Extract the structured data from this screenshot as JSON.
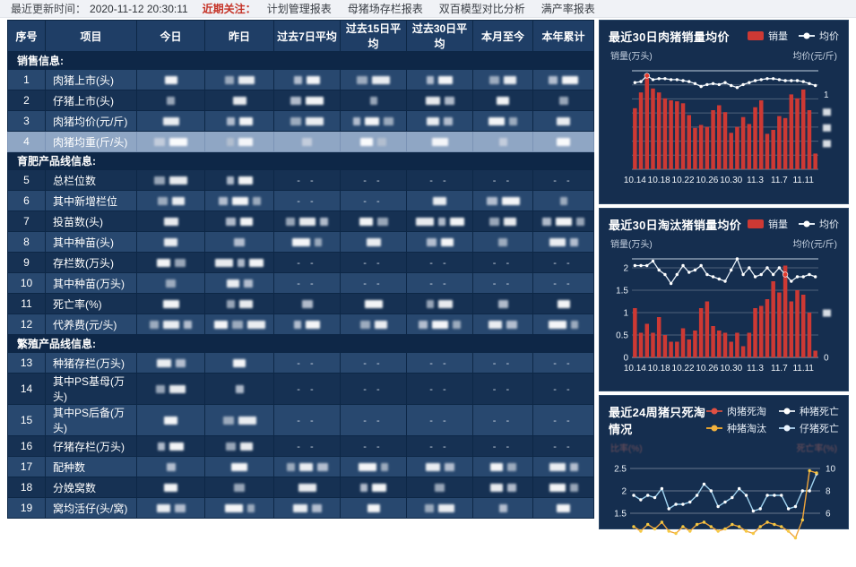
{
  "topbar": {
    "update_label": "最近更新时间：",
    "update_time": "2020-11-12 20:30:11",
    "focus_label": "近期关注：",
    "links": [
      "计划管理报表",
      "母猪场存栏报表",
      "双百模型对比分析",
      "满产率报表"
    ]
  },
  "table": {
    "dash_text": "- -",
    "headers": [
      "序号",
      "项目",
      "今日",
      "昨日",
      "过去7日平均",
      "过去15日平均",
      "过去30日平均",
      "本月至今",
      "本年累计"
    ],
    "rows": [
      {
        "type": "section",
        "label": "销售信息:"
      },
      {
        "type": "data",
        "no": "1",
        "label": "肉猪上市(头)",
        "shade": "medium",
        "cells": [
          "b",
          "bb",
          "bb",
          "bb",
          "bb",
          "bb",
          "bb"
        ]
      },
      {
        "type": "data",
        "no": "2",
        "label": "仔猪上市(头)",
        "shade": "dark",
        "cells": [
          "b",
          "b",
          "bb",
          "b",
          "bb",
          "b",
          "b"
        ]
      },
      {
        "type": "data",
        "no": "3",
        "label": "肉猪均价(元/斤)",
        "shade": "medium",
        "cells": [
          "b",
          "bb",
          "bb",
          "bbb",
          "bb",
          "bb",
          "b"
        ]
      },
      {
        "type": "data",
        "no": "4",
        "label": "肉猪均重(斤/头)",
        "shade": "selected",
        "cells": [
          "bb",
          "bb",
          "b",
          "bb",
          "b",
          "b",
          "b"
        ]
      },
      {
        "type": "section",
        "label": "育肥产品线信息:"
      },
      {
        "type": "data",
        "no": "5",
        "label": "总栏位数",
        "shade": "dark",
        "cells": [
          "bb",
          "bb",
          "d",
          "d",
          "d",
          "d",
          "d"
        ]
      },
      {
        "type": "data",
        "no": "6",
        "label": "其中新增栏位",
        "shade": "medium",
        "cells": [
          "bb",
          "bbb",
          "d",
          "d",
          "b",
          "bb",
          "b"
        ]
      },
      {
        "type": "data",
        "no": "7",
        "label": "投苗数(头)",
        "shade": "dark",
        "cells": [
          "b",
          "bb",
          "bbb",
          "bb",
          "bbb",
          "bb",
          "bbb"
        ]
      },
      {
        "type": "data",
        "no": "8",
        "label": "其中种苗(头)",
        "shade": "medium",
        "cells": [
          "b",
          "b",
          "bb",
          "b",
          "bb",
          "b",
          "bb"
        ]
      },
      {
        "type": "data",
        "no": "9",
        "label": "存栏数(万头)",
        "shade": "dark",
        "cells": [
          "bb",
          "bbb",
          "d",
          "d",
          "d",
          "d",
          "d"
        ]
      },
      {
        "type": "data",
        "no": "10",
        "label": "其中种苗(万头)",
        "shade": "medium",
        "cells": [
          "b",
          "bb",
          "d",
          "d",
          "d",
          "d",
          "d"
        ]
      },
      {
        "type": "data",
        "no": "11",
        "label": "死亡率(%)",
        "shade": "dark",
        "cells": [
          "b",
          "bb",
          "b",
          "b",
          "bb",
          "b",
          "b"
        ]
      },
      {
        "type": "data",
        "no": "12",
        "label": "代养费(元/头)",
        "shade": "medium",
        "cells": [
          "bbb",
          "bbb",
          "bb",
          "bb",
          "bbb",
          "bb",
          "bb"
        ]
      },
      {
        "type": "section",
        "label": "繁殖产品线信息:"
      },
      {
        "type": "data",
        "no": "13",
        "label": "种猪存栏(万头)",
        "shade": "medium",
        "cells": [
          "bb",
          "b",
          "d",
          "d",
          "d",
          "d",
          "d"
        ]
      },
      {
        "type": "data",
        "no": "14",
        "label": "其中PS基母(万头)",
        "shade": "dark",
        "cells": [
          "bb",
          "b",
          "d",
          "d",
          "d",
          "d",
          "d"
        ]
      },
      {
        "type": "data",
        "no": "15",
        "label": "其中PS后备(万头)",
        "shade": "medium",
        "cells": [
          "b",
          "bb",
          "d",
          "d",
          "d",
          "d",
          "d"
        ]
      },
      {
        "type": "data",
        "no": "16",
        "label": "仔猪存栏(万头)",
        "shade": "dark",
        "cells": [
          "bb",
          "bb",
          "d",
          "d",
          "d",
          "d",
          "d"
        ]
      },
      {
        "type": "data",
        "no": "17",
        "label": "配种数",
        "shade": "medium",
        "cells": [
          "b",
          "b",
          "bbb",
          "bb",
          "bb",
          "bb",
          "bb"
        ]
      },
      {
        "type": "data",
        "no": "18",
        "label": "分娩窝数",
        "shade": "dark",
        "cells": [
          "b",
          "b",
          "b",
          "bb",
          "b",
          "bb",
          "bb"
        ]
      },
      {
        "type": "data",
        "no": "19",
        "label": "窝均活仔(头/窝)",
        "shade": "medium",
        "cells": [
          "bb",
          "bb",
          "bb",
          "b",
          "bb",
          "b",
          "b"
        ]
      }
    ]
  },
  "colors": {
    "bar_red": "#cd3934",
    "highlight_dot": "#e23b2e",
    "panel_bg": "#152e4f",
    "grid": "rgba(255,255,255,0.25)",
    "line_white": "#e8f1f9",
    "line3_blue": "#9fd2ef",
    "line3_orange": "#f0a53a"
  },
  "chart_data": [
    {
      "type": "bar+line",
      "title": "最近30日肉猪销量均价",
      "legend": [
        {
          "label": "销量",
          "swatch": "bar",
          "color": "#cd3934"
        },
        {
          "label": "均价",
          "swatch": "dotline",
          "color": "#ffffff",
          "line": "#dfe9f3"
        }
      ],
      "y_left_label": "销量(万头)",
      "y_right_label": "均价(元/斤)",
      "x_labels": [
        "10.14",
        "10.18",
        "10.22",
        "10.26",
        "10.30",
        "11.3",
        "11.7",
        "11.11"
      ],
      "note": "y-axis tick values redacted in source; bar/line values are relative 0-1 of plot height",
      "y_max": 1,
      "bars": [
        0.62,
        0.78,
        0.93,
        0.82,
        0.78,
        0.72,
        0.7,
        0.69,
        0.67,
        0.55,
        0.42,
        0.45,
        0.43,
        0.6,
        0.65,
        0.58,
        0.37,
        0.43,
        0.53,
        0.46,
        0.63,
        0.7,
        0.36,
        0.4,
        0.54,
        0.52,
        0.76,
        0.72,
        0.81,
        0.6,
        0.16
      ],
      "line": [
        0.88,
        0.89,
        0.95,
        0.91,
        0.92,
        0.92,
        0.91,
        0.91,
        0.9,
        0.89,
        0.87,
        0.84,
        0.86,
        0.87,
        0.86,
        0.88,
        0.85,
        0.83,
        0.86,
        0.88,
        0.9,
        0.91,
        0.92,
        0.92,
        0.91,
        0.9,
        0.9,
        0.9,
        0.89,
        0.87,
        0.85
      ],
      "highlight_index": 2,
      "grid_count": 6,
      "right_axis": [
        {
          "pos": 0.24,
          "text": "1"
        },
        {
          "pos": 0.42,
          "blur": true
        },
        {
          "pos": 0.58,
          "blur": true
        },
        {
          "pos": 0.74,
          "blur": true
        }
      ],
      "y_ticks": []
    },
    {
      "type": "bar+line",
      "title": "最近30日淘汰猪销量均价",
      "legend": [
        {
          "label": "销量",
          "swatch": "bar",
          "color": "#cd3934"
        },
        {
          "label": "均价",
          "swatch": "dotline",
          "color": "#ffffff",
          "line": "#dfe9f3"
        }
      ],
      "y_left_label": "销量(万头)",
      "y_right_label": "均价(元/斤)",
      "x_labels": [
        "10.14",
        "10.18",
        "10.22",
        "10.26",
        "10.30",
        "11.3",
        "11.7",
        "11.11"
      ],
      "y_max": 2.2,
      "bars": [
        1.1,
        0.55,
        0.75,
        0.55,
        0.9,
        0.5,
        0.35,
        0.35,
        0.65,
        0.4,
        0.6,
        1.1,
        1.25,
        0.7,
        0.6,
        0.55,
        0.35,
        0.55,
        0.25,
        0.55,
        1.1,
        1.15,
        1.3,
        1.7,
        1.45,
        2.05,
        1.25,
        1.5,
        1.4,
        1.0,
        0.15
      ],
      "line": [
        2.05,
        2.05,
        2.05,
        2.15,
        1.95,
        1.85,
        1.65,
        1.85,
        2.05,
        1.9,
        1.95,
        2.05,
        1.85,
        1.8,
        1.75,
        1.7,
        1.95,
        2.2,
        1.85,
        2.0,
        1.8,
        1.85,
        2.0,
        1.85,
        2.0,
        1.85,
        1.7,
        1.8,
        1.8,
        1.85,
        1.8
      ],
      "highlight_index": 25,
      "grid_count": 0,
      "right_axis": [
        {
          "pos": 0.55,
          "blur": true
        },
        {
          "pos": 1,
          "text": "0"
        }
      ],
      "y_ticks": [
        {
          "v": 2,
          "label": "2"
        },
        {
          "v": 1.5,
          "label": "1.5"
        },
        {
          "v": 1,
          "label": "1"
        },
        {
          "v": 0.5,
          "label": "0.5"
        },
        {
          "v": 0,
          "label": "0"
        }
      ]
    },
    {
      "type": "line",
      "title": "最近24周猪只死淘情况",
      "legend": [
        {
          "label": "肉猪死淘",
          "swatch": "dotline",
          "color": "#e05043",
          "line": "#b84a42"
        },
        {
          "label": "种猪死亡",
          "swatch": "dotline",
          "color": "#ffffff",
          "line": "#cfd8e2"
        },
        {
          "label": "种猪淘汰",
          "swatch": "dotline",
          "color": "#f2b23e",
          "line": "#e0a030"
        },
        {
          "label": "仔猪死亡",
          "swatch": "dotline",
          "color": "#eaf4ff",
          "line": "#9fc2e0"
        }
      ],
      "y_left_label": "比率(%)",
      "y_right_label": "死亡率(%)",
      "left_ticks": [
        {
          "v": 2.5,
          "label": "2.5"
        },
        {
          "v": 2,
          "label": "2"
        },
        {
          "v": 1.5,
          "label": "1.5"
        }
      ],
      "right_ticks": [
        "10",
        "8",
        "6"
      ],
      "series": [
        {
          "name": "肉猪死淘",
          "color": "#9fd2ef",
          "dot": "#ffffff",
          "values": [
            1.9,
            1.8,
            1.9,
            1.85,
            2.05,
            1.6,
            1.7,
            1.7,
            1.75,
            1.9,
            2.15,
            2.0,
            1.65,
            1.75,
            1.85,
            2.05,
            1.9,
            1.55,
            1.6,
            1.9,
            1.9,
            1.9,
            1.6,
            1.65,
            2.0,
            2.0,
            2.38
          ]
        },
        {
          "name": "种猪淘汰",
          "color": "#f0a53a",
          "dot": "#f5c842",
          "values": [
            1.2,
            1.1,
            1.25,
            1.15,
            1.3,
            1.1,
            1.05,
            1.2,
            1.1,
            1.25,
            1.3,
            1.2,
            1.1,
            1.15,
            1.25,
            1.2,
            1.1,
            1.05,
            1.2,
            1.3,
            1.25,
            1.2,
            1.1,
            0.95,
            1.35,
            2.45,
            2.4
          ]
        }
      ]
    }
  ]
}
